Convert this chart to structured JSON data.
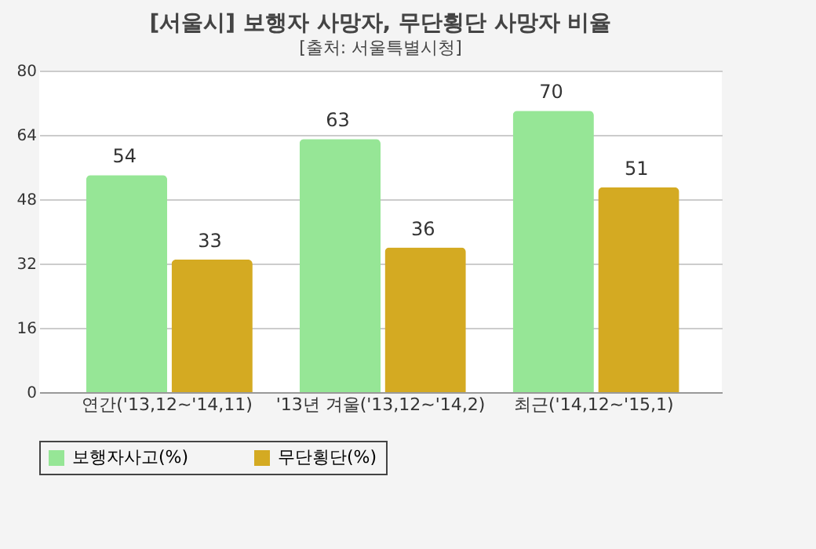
{
  "chart_data": {
    "type": "bar",
    "title": "[서울시] 보행자 사망자, 무단횡단 사망자 비율",
    "subtitle": "[출처: 서울특별시청]",
    "categories": [
      "연간('13,12~'14,11)",
      "'13년 겨울('13,12~'14,2)",
      "최근('14,12~'15,1)"
    ],
    "series": [
      {
        "name": "보행자사고(%)",
        "color": "#96e696",
        "values": [
          54,
          63,
          70
        ]
      },
      {
        "name": "무단횡단(%)",
        "color": "#d4aa22",
        "values": [
          33,
          36,
          51
        ]
      }
    ],
    "ylim": [
      0,
      80
    ],
    "yticks": [
      0,
      16,
      32,
      48,
      64,
      80
    ],
    "grid": "y",
    "legend": "bottom",
    "data_labels": true
  }
}
